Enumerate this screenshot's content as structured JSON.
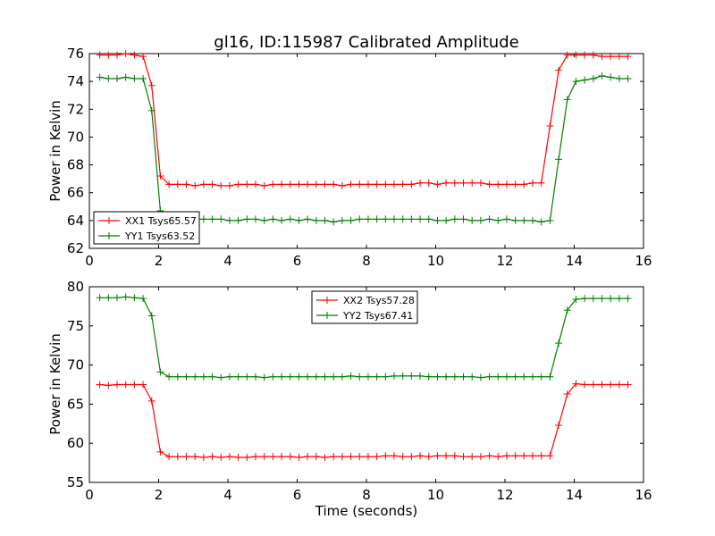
{
  "title": "gl16, ID:115987 Calibrated Amplitude",
  "chart_data": [
    {
      "type": "line",
      "ylabel": "Power in Kelvin",
      "xlabel": "",
      "xlim": [
        0,
        16
      ],
      "ylim": [
        62,
        76
      ],
      "xticks": [
        "0",
        "2",
        "4",
        "6",
        "8",
        "10",
        "12",
        "14",
        "16"
      ],
      "yticks": [
        "62",
        "64",
        "66",
        "68",
        "70",
        "72",
        "74",
        "76"
      ],
      "legend_position": "lower-left",
      "grid": false,
      "x": [
        0.3,
        0.55,
        0.8,
        1.05,
        1.3,
        1.55,
        1.8,
        2.05,
        2.3,
        2.55,
        2.8,
        3.05,
        3.3,
        3.55,
        3.8,
        4.05,
        4.3,
        4.55,
        4.8,
        5.05,
        5.3,
        5.55,
        5.8,
        6.05,
        6.3,
        6.55,
        6.8,
        7.05,
        7.3,
        7.55,
        7.8,
        8.05,
        8.3,
        8.55,
        8.8,
        9.05,
        9.3,
        9.55,
        9.8,
        10.05,
        10.3,
        10.55,
        10.8,
        11.05,
        11.3,
        11.55,
        11.8,
        12.05,
        12.3,
        12.55,
        12.8,
        13.05,
        13.3,
        13.55,
        13.8,
        14.05,
        14.3,
        14.55,
        14.8,
        15.05,
        15.3,
        15.55
      ],
      "series": [
        {
          "name": "XX1 Tsys65.57",
          "color": "#ff0000",
          "values": [
            75.9,
            75.9,
            75.9,
            76.0,
            75.9,
            75.8,
            73.7,
            67.2,
            66.6,
            66.6,
            66.6,
            66.5,
            66.6,
            66.6,
            66.5,
            66.5,
            66.6,
            66.6,
            66.6,
            66.5,
            66.6,
            66.6,
            66.6,
            66.6,
            66.6,
            66.6,
            66.6,
            66.6,
            66.5,
            66.6,
            66.6,
            66.6,
            66.6,
            66.6,
            66.6,
            66.6,
            66.6,
            66.7,
            66.7,
            66.6,
            66.7,
            66.7,
            66.7,
            66.7,
            66.7,
            66.6,
            66.6,
            66.6,
            66.6,
            66.6,
            66.7,
            66.7,
            70.8,
            74.8,
            75.9,
            75.9,
            75.9,
            75.9,
            75.8,
            75.8,
            75.8,
            75.8
          ]
        },
        {
          "name": "YY1 Tsys63.52",
          "color": "#008000",
          "values": [
            74.3,
            74.2,
            74.2,
            74.3,
            74.2,
            74.2,
            71.9,
            64.7,
            64.2,
            64.2,
            64.2,
            64.1,
            64.1,
            64.1,
            64.1,
            64.0,
            64.0,
            64.1,
            64.1,
            64.0,
            64.1,
            64.0,
            64.1,
            64.0,
            64.1,
            64.0,
            64.0,
            63.9,
            64.0,
            64.0,
            64.1,
            64.1,
            64.1,
            64.1,
            64.1,
            64.1,
            64.1,
            64.1,
            64.1,
            64.0,
            64.0,
            64.1,
            64.1,
            64.0,
            64.0,
            64.1,
            64.0,
            64.1,
            64.0,
            64.0,
            64.0,
            63.9,
            64.0,
            68.4,
            72.7,
            74.0,
            74.1,
            74.2,
            74.4,
            74.3,
            74.2,
            74.2
          ]
        }
      ]
    },
    {
      "type": "line",
      "ylabel": "Power in Kelvin",
      "xlabel": "Time (seconds)",
      "xlim": [
        0,
        16
      ],
      "ylim": [
        55,
        80
      ],
      "xticks": [
        "0",
        "2",
        "4",
        "6",
        "8",
        "10",
        "12",
        "14",
        "16"
      ],
      "yticks": [
        "55",
        "60",
        "65",
        "70",
        "75",
        "80"
      ],
      "legend_position": "upper-center",
      "grid": false,
      "x": [
        0.3,
        0.55,
        0.8,
        1.05,
        1.3,
        1.55,
        1.8,
        2.05,
        2.3,
        2.55,
        2.8,
        3.05,
        3.3,
        3.55,
        3.8,
        4.05,
        4.3,
        4.55,
        4.8,
        5.05,
        5.3,
        5.55,
        5.8,
        6.05,
        6.3,
        6.55,
        6.8,
        7.05,
        7.3,
        7.55,
        7.8,
        8.05,
        8.3,
        8.55,
        8.8,
        9.05,
        9.3,
        9.55,
        9.8,
        10.05,
        10.3,
        10.55,
        10.8,
        11.05,
        11.3,
        11.55,
        11.8,
        12.05,
        12.3,
        12.55,
        12.8,
        13.05,
        13.3,
        13.55,
        13.8,
        14.05,
        14.3,
        14.55,
        14.8,
        15.05,
        15.3,
        15.55
      ],
      "series": [
        {
          "name": "XX2 Tsys57.28",
          "color": "#ff0000",
          "values": [
            67.5,
            67.4,
            67.5,
            67.5,
            67.5,
            67.5,
            65.4,
            58.9,
            58.3,
            58.3,
            58.3,
            58.3,
            58.2,
            58.3,
            58.2,
            58.3,
            58.2,
            58.2,
            58.3,
            58.3,
            58.3,
            58.3,
            58.3,
            58.2,
            58.3,
            58.3,
            58.2,
            58.3,
            58.3,
            58.3,
            58.3,
            58.3,
            58.3,
            58.4,
            58.4,
            58.3,
            58.3,
            58.4,
            58.3,
            58.4,
            58.4,
            58.4,
            58.3,
            58.3,
            58.3,
            58.4,
            58.3,
            58.4,
            58.4,
            58.4,
            58.4,
            58.4,
            58.4,
            62.3,
            66.3,
            67.6,
            67.5,
            67.5,
            67.5,
            67.5,
            67.5,
            67.5
          ]
        },
        {
          "name": "YY2 Tsys67.41",
          "color": "#008000",
          "values": [
            78.6,
            78.6,
            78.6,
            78.7,
            78.6,
            78.5,
            76.3,
            69.1,
            68.5,
            68.5,
            68.5,
            68.5,
            68.5,
            68.5,
            68.4,
            68.5,
            68.5,
            68.5,
            68.5,
            68.4,
            68.5,
            68.5,
            68.5,
            68.5,
            68.5,
            68.5,
            68.5,
            68.5,
            68.5,
            68.6,
            68.5,
            68.5,
            68.5,
            68.5,
            68.6,
            68.6,
            68.6,
            68.6,
            68.5,
            68.5,
            68.5,
            68.5,
            68.5,
            68.5,
            68.4,
            68.5,
            68.5,
            68.5,
            68.5,
            68.5,
            68.5,
            68.5,
            68.5,
            72.8,
            77.0,
            78.4,
            78.5,
            78.5,
            78.5,
            78.5,
            78.5,
            78.5
          ]
        }
      ]
    }
  ]
}
